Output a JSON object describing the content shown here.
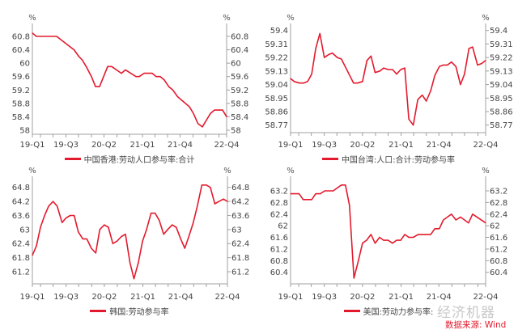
{
  "chart_data": [
    {
      "type": "line",
      "title": "中国香港:劳动人口参与率:合计",
      "legend": "中国香港:劳动人口参与率:合计",
      "unit_label": "%",
      "color": "#e31a2d",
      "x_labels": [
        "19-Q1",
        "19-Q3",
        "20-Q2",
        "21-Q1",
        "21-Q4",
        "22-Q4"
      ],
      "yticks": [
        60.8,
        60.4,
        60,
        59.6,
        59.2,
        58.8,
        58.4,
        58
      ],
      "ylim": [
        58,
        60.8
      ],
      "xlim": [
        0,
        48
      ],
      "x": [
        0,
        1,
        6,
        10.3,
        11.5,
        12.3,
        13.3,
        14.6,
        15.6,
        16.6,
        18.6,
        19.6,
        22,
        23,
        25.6,
        26.4,
        27.6,
        29.6,
        30.6,
        31.6,
        32.6,
        33.7,
        34.7,
        35.9,
        38.8,
        39.8,
        40.9,
        42,
        44,
        45,
        47,
        48
      ],
      "y": [
        60.9,
        60.8,
        60.8,
        60.4,
        60.2,
        60.1,
        59.9,
        59.6,
        59.3,
        59.3,
        59.9,
        59.9,
        59.7,
        59.8,
        59.6,
        59.6,
        59.7,
        59.7,
        59.6,
        59.6,
        59.5,
        59.3,
        59.2,
        59.0,
        58.7,
        58.5,
        58.2,
        58.1,
        58.5,
        58.6,
        58.6,
        58.4
      ]
    },
    {
      "type": "line",
      "title": "中国台湾:人口:合计:劳动参与率",
      "legend": "中国台湾:人口:合计:劳动参与率",
      "unit_label": "%",
      "color": "#e31a2d",
      "x_labels": [
        "19-Q1",
        "19-Q3",
        "20-Q2",
        "21-Q1",
        "21-Q4",
        "22-Q4"
      ],
      "yticks": [
        59.4,
        59.31,
        59.22,
        59.13,
        59.04,
        58.95,
        58.86,
        58.77
      ],
      "ylim": [
        58.77,
        59.4
      ],
      "xlim": [
        0,
        48
      ],
      "x": [
        0,
        0.9,
        2.2,
        3.2,
        4.2,
        5.2,
        6.2,
        7.2,
        8.3,
        9.4,
        10.3,
        11.5,
        12.5,
        15.5,
        16.5,
        17.7,
        18.8,
        19.8,
        20.8,
        22,
        22.9,
        24,
        25.1,
        26.1,
        27.1,
        28.1,
        29.1,
        30.2,
        31.3,
        32.4,
        33.4,
        34.5,
        35.5,
        36.6,
        37.6,
        38.6,
        39.6,
        40.7,
        41.8,
        42.8,
        43.9,
        44.8,
        46,
        47,
        48
      ],
      "y": [
        59.08,
        59.06,
        59.05,
        59.05,
        59.06,
        59.11,
        59.28,
        59.38,
        59.22,
        59.24,
        59.25,
        59.22,
        59.21,
        59.05,
        59.05,
        59.06,
        59.2,
        59.23,
        59.12,
        59.13,
        59.15,
        59.14,
        59.14,
        59.11,
        59.14,
        59.15,
        58.81,
        58.77,
        58.94,
        58.97,
        58.93,
        59.0,
        59.1,
        59.16,
        59.17,
        59.17,
        59.19,
        59.16,
        59.04,
        59.11,
        59.28,
        59.29,
        59.17,
        59.18,
        59.2
      ]
    },
    {
      "type": "line",
      "title": "韩国:劳动参与率",
      "legend": "韩国:劳动参与率",
      "unit_label": "%",
      "color": "#e31a2d",
      "x_labels": [
        "19-Q1",
        "19-Q3",
        "20-Q2",
        "21-Q1",
        "21-Q4",
        "22-Q4"
      ],
      "yticks": [
        64.8,
        64.2,
        63.6,
        63,
        62.4,
        61.8,
        61.2
      ],
      "ylim": [
        61.2,
        64.8
      ],
      "xlim": [
        0,
        48
      ],
      "x": [
        0,
        1,
        2,
        3,
        4,
        5.1,
        6.1,
        7.3,
        8.3,
        9.3,
        10.3,
        11.3,
        12.4,
        13.4,
        14.5,
        15.6,
        16.6,
        17.7,
        18.7,
        19.8,
        20.8,
        21.9,
        22.9,
        24,
        25,
        26.1,
        27.1,
        28.1,
        29.2,
        30.2,
        31.2,
        32.3,
        33.3,
        34.4,
        35.4,
        36.5,
        37.5,
        38.5,
        39.6,
        40.6,
        41.7,
        42.8,
        43.8,
        44.9,
        45.9,
        47,
        48
      ],
      "y": [
        61.9,
        62.3,
        63.1,
        63.6,
        64.0,
        64.2,
        64.0,
        63.3,
        63.5,
        63.6,
        63.6,
        62.9,
        62.6,
        62.6,
        62.2,
        62.0,
        63.0,
        63.2,
        63.1,
        62.4,
        62.5,
        62.7,
        62.8,
        61.6,
        60.9,
        61.6,
        62.5,
        63.0,
        63.7,
        63.7,
        63.4,
        62.8,
        63.0,
        63.2,
        63.1,
        62.6,
        62.2,
        62.7,
        63.3,
        64.0,
        64.9,
        64.9,
        64.8,
        64.1,
        64.2,
        64.3,
        64.2
      ]
    },
    {
      "type": "line",
      "title": "美国:劳动力参与率:季调",
      "legend": "美国:劳动力参与率:",
      "unit_label": "%",
      "color": "#e31a2d",
      "x_labels": [
        "19-Q1",
        "19-Q3",
        "20-Q2",
        "21-Q1",
        "21-Q4",
        "22-Q4"
      ],
      "yticks": [
        63.2,
        62.8,
        62.4,
        62,
        61.6,
        61.2,
        60.8,
        60.4
      ],
      "ylim": [
        60.4,
        63.2
      ],
      "xlim": [
        0,
        48
      ],
      "x": [
        0,
        2.1,
        3.1,
        5.2,
        6.2,
        7.3,
        8.4,
        10.5,
        11.5,
        12.5,
        13.5,
        14.5,
        15.6,
        16.7,
        17.7,
        18.7,
        19.8,
        20.8,
        21.9,
        22.9,
        24,
        25.1,
        26.1,
        27.1,
        28.1,
        29.1,
        30.2,
        31.4,
        34.5,
        35.5,
        36.6,
        37.6,
        38.6,
        39.6,
        40.7,
        41.8,
        42.8,
        43.8,
        44.8,
        48
      ],
      "y": [
        63.1,
        63.1,
        62.9,
        62.9,
        63.1,
        63.1,
        63.2,
        63.2,
        63.3,
        63.4,
        63.4,
        62.7,
        60.2,
        60.8,
        61.4,
        61.5,
        61.7,
        61.4,
        61.6,
        61.5,
        61.5,
        61.4,
        61.5,
        61.5,
        61.7,
        61.6,
        61.6,
        61.7,
        61.7,
        61.9,
        61.9,
        62.2,
        62.3,
        62.4,
        62.2,
        62.3,
        62.2,
        62.1,
        62.4,
        62.1
      ]
    }
  ],
  "watermark": "经济机器",
  "source": "数据来源: Wind"
}
